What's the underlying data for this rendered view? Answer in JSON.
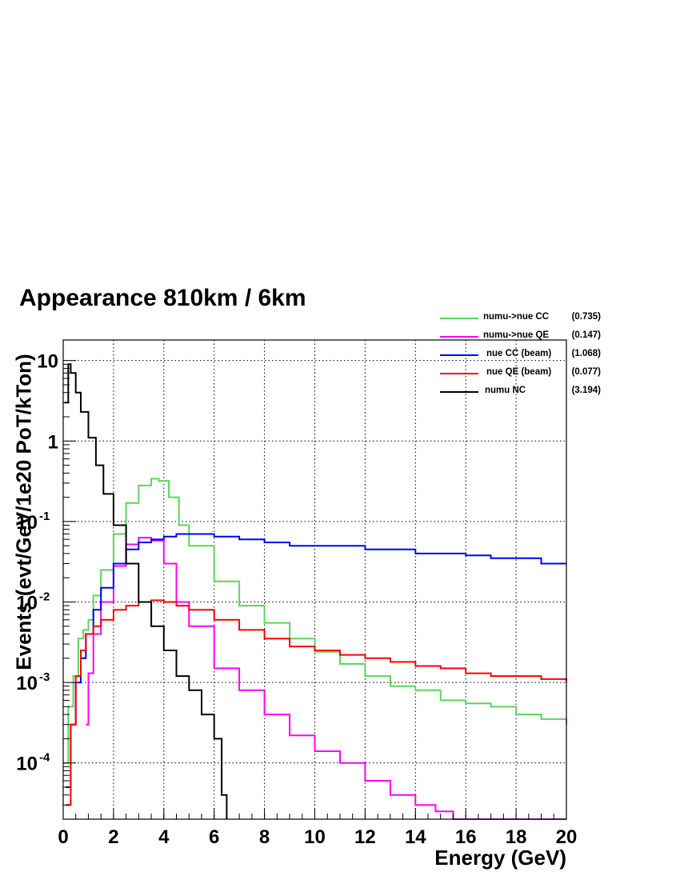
{
  "chart_data": {
    "type": "line",
    "title": "Appearance 810km / 6km",
    "xlabel": "Energy (GeV)",
    "ylabel": "Events (evt/GeV/1e20 PoT/kTon)",
    "xlim": [
      0,
      20
    ],
    "ylim": [
      2e-05,
      18
    ],
    "yscale": "log",
    "grid": true,
    "legend_position": "top-right",
    "x_ticks": [
      "0",
      "2",
      "4",
      "6",
      "8",
      "10",
      "12",
      "14",
      "16",
      "18",
      "20"
    ],
    "y_ticks": [
      {
        "base": "10",
        "exp": "-4",
        "value": 0.0001
      },
      {
        "base": "10",
        "exp": "-3",
        "value": 0.001
      },
      {
        "base": "10",
        "exp": "-2",
        "value": 0.01
      },
      {
        "base": "10",
        "exp": "-1",
        "value": 0.1
      },
      {
        "base": "1",
        "exp": "",
        "value": 1
      },
      {
        "base": "10",
        "exp": "",
        "value": 10
      }
    ],
    "series": [
      {
        "name": "numu->nue CC",
        "value_label": "(0.735)",
        "color": "#5ad55a",
        "x": [
          0,
          0.2,
          0.4,
          0.6,
          0.8,
          1.0,
          1.2,
          1.5,
          2.0,
          2.5,
          3.0,
          3.5,
          3.8,
          4.2,
          4.6,
          5.0,
          6.0,
          7.0,
          8.0,
          9.0,
          10.0,
          11.0,
          12.0,
          13.0,
          14.0,
          15.0,
          16.0,
          17.0,
          18.0,
          19.0,
          20.0
        ],
        "y": [
          0.0001,
          0.0005,
          0.0012,
          0.0035,
          0.0045,
          0.006,
          0.012,
          0.025,
          0.07,
          0.17,
          0.28,
          0.34,
          0.32,
          0.2,
          0.09,
          0.05,
          0.018,
          0.009,
          0.0055,
          0.0035,
          0.0024,
          0.0017,
          0.0012,
          0.0009,
          0.0008,
          0.0006,
          0.00055,
          0.0005,
          0.0004,
          0.00035,
          0.0003
        ]
      },
      {
        "name": "numu->nue QE",
        "value_label": "(0.147)",
        "color": "#ff00ff",
        "x": [
          0.9,
          1.0,
          1.2,
          1.5,
          2.0,
          2.5,
          3.0,
          3.5,
          4.0,
          4.5,
          5.0,
          6.0,
          7.0,
          8.0,
          9.0,
          10.0,
          11.0,
          12.0,
          13.0,
          14.0,
          14.8,
          15.5,
          20.0
        ],
        "y": [
          0.0003,
          0.0013,
          0.004,
          0.01,
          0.028,
          0.052,
          0.063,
          0.058,
          0.03,
          0.01,
          0.005,
          0.0015,
          0.0008,
          0.0004,
          0.00022,
          0.00014,
          0.0001,
          6e-05,
          4e-05,
          3e-05,
          2.5e-05,
          2e-05,
          2e-05
        ]
      },
      {
        "name": "nue CC (beam)",
        "value_label": "(1.068)",
        "color": "#0000ff",
        "x": [
          0.1,
          0.3,
          0.5,
          0.7,
          0.9,
          1.2,
          1.5,
          2.0,
          2.5,
          3.0,
          3.5,
          4.0,
          4.5,
          5.0,
          6.0,
          7.0,
          8.0,
          9.0,
          10.0,
          11.0,
          12.0,
          13.0,
          14.0,
          15.0,
          16.0,
          17.0,
          18.0,
          19.0,
          20.0
        ],
        "y": [
          5e-05,
          0.0003,
          0.001,
          0.002,
          0.004,
          0.008,
          0.015,
          0.03,
          0.045,
          0.055,
          0.06,
          0.065,
          0.07,
          0.07,
          0.065,
          0.06,
          0.055,
          0.05,
          0.05,
          0.05,
          0.045,
          0.045,
          0.04,
          0.04,
          0.038,
          0.035,
          0.035,
          0.03,
          0.03
        ]
      },
      {
        "name": "nue QE (beam)",
        "value_label": "(0.077)",
        "color": "#ff0000",
        "x": [
          0.1,
          0.3,
          0.5,
          0.7,
          0.9,
          1.2,
          1.5,
          2.0,
          2.5,
          3.0,
          3.5,
          4.0,
          4.5,
          5.0,
          6.0,
          7.0,
          8.0,
          9.0,
          10.0,
          11.0,
          12.0,
          13.0,
          14.0,
          15.0,
          16.0,
          17.0,
          18.0,
          19.0,
          20.0
        ],
        "y": [
          3e-05,
          0.0003,
          0.0012,
          0.0025,
          0.004,
          0.005,
          0.006,
          0.008,
          0.009,
          0.01,
          0.0105,
          0.01,
          0.009,
          0.008,
          0.006,
          0.0045,
          0.0035,
          0.0028,
          0.0025,
          0.0022,
          0.002,
          0.0018,
          0.0016,
          0.0015,
          0.0013,
          0.0012,
          0.0012,
          0.0011,
          0.001
        ]
      },
      {
        "name": "numu NC",
        "value_label": "(3.194)",
        "color": "#000000",
        "x": [
          0.05,
          0.2,
          0.3,
          0.5,
          0.7,
          1.0,
          1.3,
          1.6,
          2.0,
          2.5,
          3.0,
          3.5,
          4.0,
          4.5,
          5.0,
          5.5,
          6.0,
          6.3,
          6.5
        ],
        "y": [
          3.0,
          9.0,
          7.0,
          4.0,
          2.3,
          1.1,
          0.5,
          0.22,
          0.09,
          0.03,
          0.01,
          0.005,
          0.0025,
          0.0012,
          0.0008,
          0.0004,
          0.0002,
          4e-05,
          2e-05
        ]
      }
    ]
  }
}
